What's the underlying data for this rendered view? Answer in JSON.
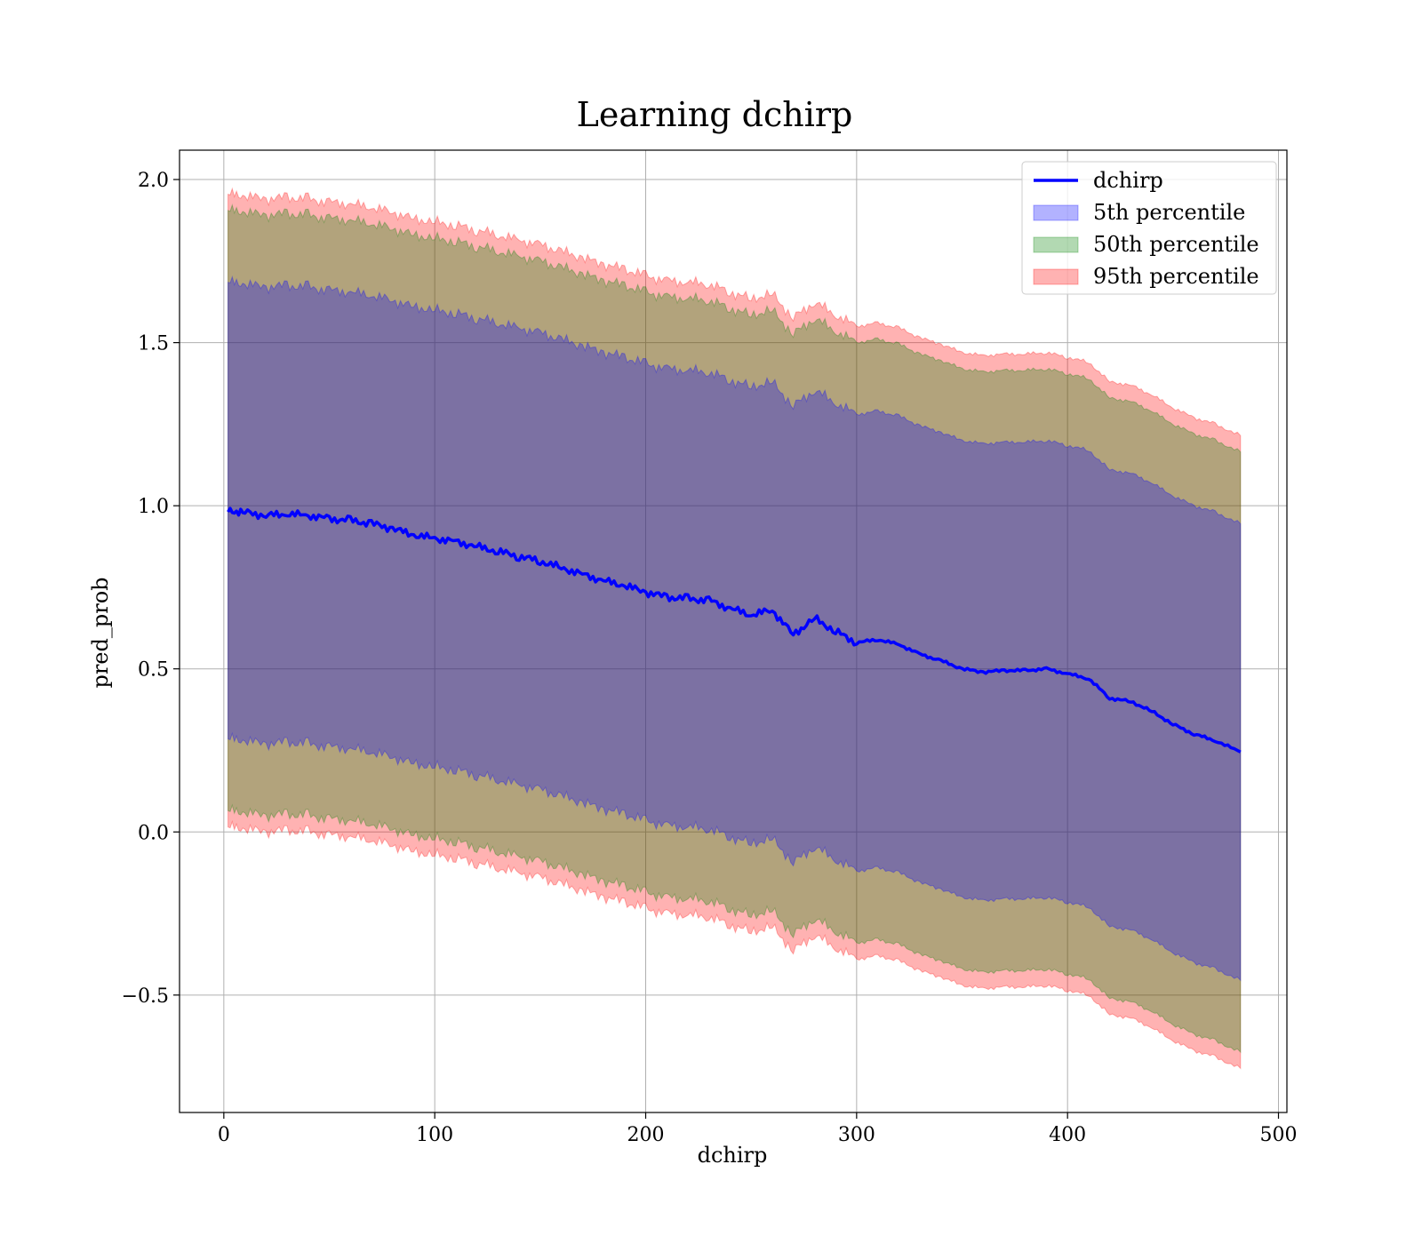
{
  "chart_data": {
    "type": "line",
    "title": "Learning dchirp",
    "xlabel": "dchirp",
    "ylabel": "pred_prob",
    "xlim": [
      -21,
      504
    ],
    "ylim": [
      -0.86,
      2.09
    ],
    "xticks": [
      0,
      100,
      200,
      300,
      400,
      500
    ],
    "yticks": [
      -0.5,
      0.0,
      0.5,
      1.0,
      1.5,
      2.0
    ],
    "xtick_labels": [
      "0",
      "100",
      "200",
      "300",
      "400",
      "500"
    ],
    "ytick_labels": [
      "−0.5",
      "0.0",
      "0.5",
      "1.0",
      "1.5",
      "2.0"
    ],
    "grid": true,
    "legend_position": "top-right",
    "x": [
      2,
      10,
      20,
      30,
      40,
      50,
      60,
      70,
      80,
      90,
      100,
      110,
      120,
      130,
      140,
      150,
      160,
      170,
      180,
      190,
      200,
      210,
      220,
      230,
      240,
      250,
      260,
      270,
      280,
      290,
      300,
      310,
      320,
      330,
      340,
      350,
      360,
      370,
      380,
      390,
      400,
      410,
      420,
      430,
      440,
      450,
      460,
      470,
      482
    ],
    "series": [
      {
        "name": "dchirp",
        "kind": "line",
        "color": "#0000ff",
        "values": [
          0.985,
          0.98,
          0.97,
          0.975,
          0.97,
          0.96,
          0.955,
          0.945,
          0.93,
          0.91,
          0.9,
          0.89,
          0.875,
          0.86,
          0.845,
          0.83,
          0.81,
          0.79,
          0.77,
          0.755,
          0.735,
          0.72,
          0.715,
          0.71,
          0.685,
          0.665,
          0.68,
          0.605,
          0.655,
          0.615,
          0.58,
          0.59,
          0.575,
          0.545,
          0.525,
          0.5,
          0.49,
          0.495,
          0.495,
          0.5,
          0.485,
          0.47,
          0.41,
          0.4,
          0.37,
          0.33,
          0.3,
          0.28,
          0.245
        ]
      },
      {
        "name": "5th percentile",
        "kind": "band",
        "color": "#0000ff",
        "lower": [
          0.285,
          0.28,
          0.27,
          0.275,
          0.27,
          0.26,
          0.255,
          0.245,
          0.23,
          0.21,
          0.2,
          0.19,
          0.175,
          0.16,
          0.145,
          0.13,
          0.11,
          0.09,
          0.07,
          0.055,
          0.035,
          0.02,
          0.015,
          0.01,
          -0.015,
          -0.035,
          -0.02,
          -0.095,
          -0.045,
          -0.085,
          -0.12,
          -0.11,
          -0.125,
          -0.155,
          -0.175,
          -0.2,
          -0.21,
          -0.205,
          -0.205,
          -0.2,
          -0.215,
          -0.23,
          -0.29,
          -0.3,
          -0.33,
          -0.37,
          -0.4,
          -0.42,
          -0.455
        ],
        "upper": [
          1.685,
          1.68,
          1.67,
          1.675,
          1.67,
          1.66,
          1.655,
          1.645,
          1.63,
          1.61,
          1.6,
          1.59,
          1.575,
          1.56,
          1.545,
          1.53,
          1.51,
          1.49,
          1.47,
          1.455,
          1.435,
          1.42,
          1.415,
          1.41,
          1.385,
          1.365,
          1.38,
          1.305,
          1.355,
          1.315,
          1.28,
          1.29,
          1.275,
          1.245,
          1.225,
          1.2,
          1.19,
          1.195,
          1.195,
          1.2,
          1.185,
          1.17,
          1.11,
          1.1,
          1.07,
          1.03,
          1.0,
          0.98,
          0.945
        ]
      },
      {
        "name": "50th percentile",
        "kind": "band",
        "color": "#008000",
        "lower": [
          0.065,
          0.06,
          0.05,
          0.055,
          0.05,
          0.04,
          0.035,
          0.025,
          0.01,
          -0.01,
          -0.02,
          -0.03,
          -0.045,
          -0.06,
          -0.075,
          -0.09,
          -0.11,
          -0.13,
          -0.15,
          -0.165,
          -0.185,
          -0.2,
          -0.205,
          -0.21,
          -0.235,
          -0.255,
          -0.24,
          -0.315,
          -0.265,
          -0.305,
          -0.34,
          -0.33,
          -0.345,
          -0.375,
          -0.395,
          -0.42,
          -0.43,
          -0.425,
          -0.425,
          -0.42,
          -0.435,
          -0.45,
          -0.51,
          -0.52,
          -0.55,
          -0.59,
          -0.62,
          -0.64,
          -0.675
        ],
        "upper": [
          1.905,
          1.9,
          1.89,
          1.895,
          1.89,
          1.88,
          1.875,
          1.865,
          1.85,
          1.83,
          1.82,
          1.81,
          1.795,
          1.78,
          1.765,
          1.75,
          1.73,
          1.71,
          1.69,
          1.675,
          1.655,
          1.64,
          1.635,
          1.63,
          1.605,
          1.585,
          1.6,
          1.525,
          1.575,
          1.535,
          1.5,
          1.51,
          1.495,
          1.465,
          1.445,
          1.42,
          1.41,
          1.415,
          1.415,
          1.42,
          1.405,
          1.39,
          1.33,
          1.32,
          1.29,
          1.25,
          1.22,
          1.2,
          1.165
        ]
      },
      {
        "name": "95th percentile",
        "kind": "band",
        "color": "#ff0000",
        "lower": [
          0.015,
          0.01,
          0.0,
          0.005,
          0.0,
          -0.01,
          -0.015,
          -0.025,
          -0.04,
          -0.06,
          -0.07,
          -0.08,
          -0.095,
          -0.11,
          -0.125,
          -0.14,
          -0.16,
          -0.18,
          -0.2,
          -0.215,
          -0.235,
          -0.25,
          -0.255,
          -0.26,
          -0.285,
          -0.305,
          -0.29,
          -0.365,
          -0.315,
          -0.355,
          -0.39,
          -0.38,
          -0.395,
          -0.425,
          -0.445,
          -0.47,
          -0.48,
          -0.475,
          -0.475,
          -0.47,
          -0.485,
          -0.5,
          -0.56,
          -0.57,
          -0.6,
          -0.64,
          -0.67,
          -0.69,
          -0.725
        ],
        "upper": [
          1.955,
          1.95,
          1.94,
          1.945,
          1.94,
          1.93,
          1.925,
          1.915,
          1.9,
          1.88,
          1.87,
          1.86,
          1.845,
          1.83,
          1.815,
          1.8,
          1.78,
          1.76,
          1.74,
          1.725,
          1.705,
          1.69,
          1.685,
          1.68,
          1.655,
          1.635,
          1.65,
          1.575,
          1.625,
          1.585,
          1.55,
          1.56,
          1.545,
          1.515,
          1.495,
          1.47,
          1.46,
          1.465,
          1.465,
          1.47,
          1.455,
          1.44,
          1.38,
          1.37,
          1.34,
          1.3,
          1.27,
          1.25,
          1.215
        ]
      }
    ]
  }
}
